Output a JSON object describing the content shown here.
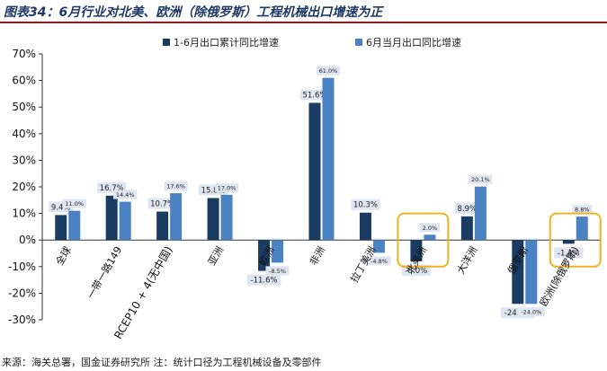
{
  "title": "图表34：6月行业对北美、欧洲（除俄罗斯）工程机械出口增速为正",
  "source": "来源：海关总署，国金证券研究所 注：统计口径为工程机械设备及零部件",
  "chart_data": {
    "type": "bar",
    "categories": [
      "全球",
      "一带一路149",
      "RCEP10 + 4(无中国)",
      "亚洲",
      "欧洲",
      "非洲",
      "拉丁美洲",
      "北美洲",
      "大洋洲",
      "俄罗斯",
      "欧洲(除俄罗斯)"
    ],
    "series": [
      {
        "name": "1-6月出口累计同比增速",
        "values": [
          9.4,
          16.7,
          10.7,
          15.8,
          -11.6,
          51.6,
          10.3,
          -8.0,
          8.9,
          -24.0,
          -1.4
        ],
        "labels": [
          "9.4%",
          "16.7%",
          "10.7%",
          "15.8%",
          "-11.6%",
          "51.6%",
          "10.3%",
          "-8.0%",
          "8.9%",
          "-24.0%",
          "-1.4%"
        ]
      },
      {
        "name": "6月当月出口同比增速",
        "values": [
          11.0,
          14.4,
          17.6,
          17.0,
          -8.5,
          61.0,
          -4.8,
          2.0,
          20.1,
          -24.0,
          8.8
        ],
        "labels": [
          "11.0%",
          "14.4%",
          "17.6%",
          "17.0%",
          "-8.5%",
          "61.0%",
          "-4.8%",
          "2.0%",
          "20.1%",
          "-24.0%",
          "8.8%"
        ]
      }
    ],
    "yticks": [
      "70%",
      "60%",
      "50%",
      "40%",
      "30%",
      "20%",
      "10%",
      "0%",
      "-10%",
      "-20%",
      "-30%"
    ],
    "ylim": [
      -30,
      70
    ],
    "highlighted": [
      "北美洲",
      "欧洲(除俄罗斯)"
    ],
    "legend_position": "top",
    "grid": false,
    "colors": {
      "series1": "#1a3c63",
      "series2": "#4a82c4",
      "highlight": "#f0b323",
      "label_box": "#dfe6f1",
      "title_rule": "#8c1d22"
    }
  }
}
